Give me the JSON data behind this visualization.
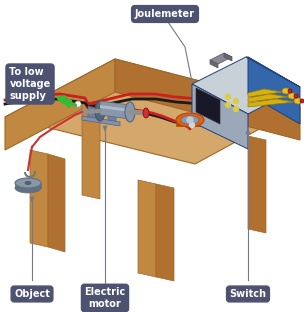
{
  "bg_color": "#ffffff",
  "label_bg": "#4d5271",
  "label_text": "#ffffff",
  "table_top_color": "#d4a76a",
  "table_left_color": "#c08840",
  "table_right_color": "#b07030",
  "table_edge": "#a06828",
  "joulemeter_label": "Joulemeter",
  "motor_label": "Electric\nmotor",
  "object_label": "Object",
  "switch_label": "Switch",
  "supply_label": "To low\nvoltage\nsupply",
  "device_blue_top": "#5588cc",
  "device_blue_front": "#3366aa",
  "device_blue_right": "#2255aa",
  "device_gray_top": "#c8d0d8",
  "device_gray_front": "#9aa8b8",
  "arrow_green": "#33bb33",
  "wire_red": "#cc2020",
  "wire_black": "#1a1a1a",
  "motor_body": "#8898aa",
  "motor_dark": "#556677",
  "motor_light": "#aabbc8",
  "switch_orange": "#e06010",
  "switch_orange_dark": "#b04808",
  "switch_silver": "#9098a8",
  "obj_silver": "#8898a8",
  "obj_dark": "#607080"
}
